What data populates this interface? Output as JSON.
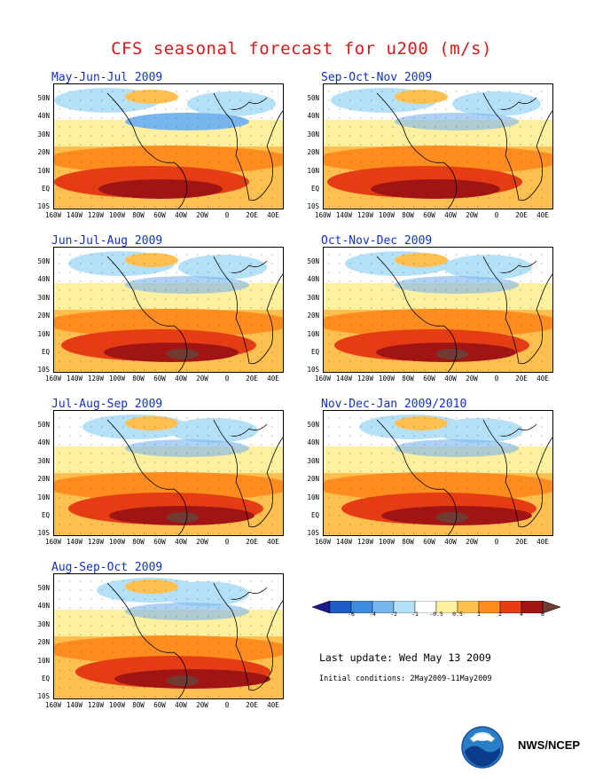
{
  "title": "CFS seasonal forecast for u200 (m/s)",
  "axes": {
    "y_ticks": [
      "50N",
      "40N",
      "30N",
      "20N",
      "10N",
      "EQ",
      "10S"
    ],
    "x_ticks": [
      "160W",
      "140W",
      "120W",
      "100W",
      "80W",
      "60W",
      "40W",
      "20W",
      "0",
      "20E",
      "40E"
    ]
  },
  "panels": [
    {
      "label": "May-Jun-Jul 2009"
    },
    {
      "label": "Sep-Oct-Nov 2009"
    },
    {
      "label": "Jun-Jul-Aug 2009"
    },
    {
      "label": "Oct-Nov-Dec 2009"
    },
    {
      "label": "Jul-Aug-Sep 2009"
    },
    {
      "label": "Nov-Dec-Jan 2009/2010"
    },
    {
      "label": "Aug-Sep-Oct 2009"
    }
  ],
  "colorbar": {
    "labels": [
      "-6",
      "-4",
      "-2",
      "-1",
      "-0.5",
      "0.5",
      "1",
      "2",
      "4",
      "6"
    ],
    "colors": [
      "#1a1a8c",
      "#1e5cc8",
      "#3c8ce0",
      "#78b4ee",
      "#b4e0f8",
      "#ffffff",
      "#fff0a0",
      "#ffc050",
      "#ff8c1e",
      "#e63c14",
      "#a01414",
      "#6e3c32"
    ]
  },
  "footer": {
    "last_update": "Last update: Wed May 13 2009",
    "initial_conditions": "Initial conditions: 2May2009-11May2009",
    "agency": "NWS/NCEP"
  }
}
